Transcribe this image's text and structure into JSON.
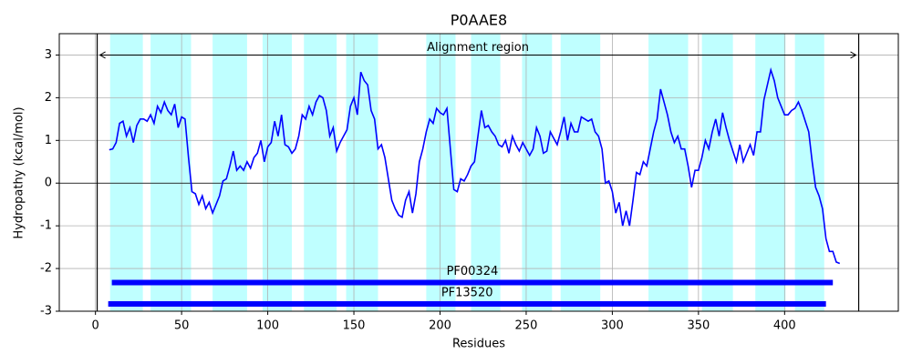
{
  "chart_data": {
    "type": "line",
    "title": "P0AAE8",
    "x_label": "Residues",
    "y_label": "Hydropathy (kcal/mol)",
    "xlim": [
      -21,
      466
    ],
    "ylim": [
      -3,
      3.5
    ],
    "xticks": [
      0,
      50,
      100,
      150,
      200,
      250,
      300,
      350,
      400
    ],
    "yticks": [
      -3,
      -2,
      -1,
      0,
      1,
      2,
      3
    ],
    "grid": true,
    "x": [
      8,
      10,
      12,
      14,
      16,
      18,
      20,
      22,
      24,
      26,
      28,
      30,
      32,
      34,
      36,
      38,
      40,
      42,
      44,
      46,
      48,
      50,
      52,
      54,
      56,
      58,
      60,
      62,
      64,
      66,
      68,
      70,
      72,
      74,
      76,
      78,
      80,
      82,
      84,
      86,
      88,
      90,
      92,
      94,
      96,
      98,
      100,
      102,
      104,
      106,
      108,
      110,
      112,
      114,
      116,
      118,
      120,
      122,
      124,
      126,
      128,
      130,
      132,
      134,
      136,
      138,
      140,
      142,
      144,
      146,
      148,
      150,
      152,
      154,
      156,
      158,
      160,
      162,
      164,
      166,
      168,
      170,
      172,
      174,
      176,
      178,
      180,
      182,
      184,
      186,
      188,
      190,
      192,
      194,
      196,
      198,
      200,
      202,
      204,
      206,
      208,
      210,
      212,
      214,
      216,
      218,
      220,
      222,
      224,
      226,
      228,
      230,
      232,
      234,
      236,
      238,
      240,
      242,
      244,
      246,
      248,
      250,
      252,
      254,
      256,
      258,
      260,
      262,
      264,
      266,
      268,
      270,
      272,
      274,
      276,
      278,
      280,
      282,
      284,
      286,
      288,
      290,
      292,
      294,
      296,
      298,
      300,
      302,
      304,
      306,
      308,
      310,
      312,
      314,
      316,
      318,
      320,
      322,
      324,
      326,
      328,
      330,
      332,
      334,
      336,
      338,
      340,
      342,
      344,
      346,
      348,
      350,
      352,
      354,
      356,
      358,
      360,
      362,
      364,
      366,
      368,
      370,
      372,
      374,
      376,
      378,
      380,
      382,
      384,
      386,
      388,
      390,
      392,
      394,
      396,
      398,
      400,
      402,
      404,
      406,
      408,
      410,
      412,
      414,
      416,
      418,
      420,
      422,
      424,
      426,
      428,
      430,
      432
    ],
    "series": [
      {
        "color": "#0000ff",
        "values": [
          0.78,
          0.8,
          0.95,
          1.4,
          1.45,
          1.1,
          1.3,
          0.95,
          1.35,
          1.5,
          1.5,
          1.45,
          1.6,
          1.4,
          1.8,
          1.65,
          1.9,
          1.7,
          1.6,
          1.85,
          1.3,
          1.55,
          1.5,
          0.6,
          -0.2,
          -0.25,
          -0.5,
          -0.3,
          -0.6,
          -0.45,
          -0.7,
          -0.5,
          -0.3,
          0.05,
          0.1,
          0.4,
          0.75,
          0.3,
          0.4,
          0.3,
          0.5,
          0.35,
          0.6,
          0.7,
          1.0,
          0.5,
          0.85,
          0.95,
          1.45,
          1.1,
          1.6,
          0.9,
          0.85,
          0.7,
          0.8,
          1.1,
          1.6,
          1.5,
          1.8,
          1.6,
          1.9,
          2.05,
          2.0,
          1.7,
          1.1,
          1.3,
          0.75,
          0.95,
          1.1,
          1.25,
          1.8,
          2.0,
          1.6,
          2.6,
          2.4,
          2.3,
          1.7,
          1.5,
          0.8,
          0.9,
          0.6,
          0.1,
          -0.4,
          -0.6,
          -0.75,
          -0.8,
          -0.4,
          -0.2,
          -0.7,
          -0.25,
          0.5,
          0.8,
          1.2,
          1.5,
          1.4,
          1.75,
          1.65,
          1.6,
          1.75,
          0.8,
          -0.15,
          -0.2,
          0.1,
          0.05,
          0.2,
          0.4,
          0.5,
          1.1,
          1.7,
          1.3,
          1.35,
          1.2,
          1.1,
          0.9,
          0.85,
          1.0,
          0.7,
          1.1,
          0.9,
          0.75,
          0.95,
          0.8,
          0.65,
          0.8,
          1.3,
          1.1,
          0.7,
          0.75,
          1.2,
          1.05,
          0.9,
          1.2,
          1.55,
          1.0,
          1.4,
          1.2,
          1.2,
          1.55,
          1.5,
          1.45,
          1.5,
          1.2,
          1.1,
          0.8,
          0.0,
          0.05,
          -0.2,
          -0.7,
          -0.45,
          -1.0,
          -0.65,
          -1.0,
          -0.4,
          0.25,
          0.2,
          0.5,
          0.4,
          0.8,
          1.2,
          1.5,
          2.2,
          1.9,
          1.6,
          1.2,
          0.95,
          1.1,
          0.8,
          0.8,
          0.4,
          -0.1,
          0.3,
          0.3,
          0.6,
          1.0,
          0.8,
          1.2,
          1.5,
          1.1,
          1.65,
          1.3,
          1.0,
          0.75,
          0.5,
          0.9,
          0.5,
          0.7,
          0.9,
          0.65,
          1.2,
          1.2,
          1.95,
          2.3,
          2.65,
          2.4,
          2.0,
          1.8,
          1.6,
          1.6,
          1.7,
          1.75,
          1.9,
          1.7,
          1.45,
          1.2,
          0.5,
          -0.1,
          -0.3,
          -0.6,
          -1.3,
          -1.6,
          -1.6,
          -1.85,
          -1.88
        ]
      }
    ],
    "regions": {
      "color": "#bfffff",
      "spans": [
        [
          8.5,
          27.5
        ],
        [
          32,
          55.5
        ],
        [
          68,
          88
        ],
        [
          97,
          114
        ],
        [
          121,
          140
        ],
        [
          145.5,
          164
        ],
        [
          192,
          209
        ],
        [
          218,
          235
        ],
        [
          247.6,
          265
        ],
        [
          270,
          293
        ],
        [
          321,
          344
        ],
        [
          352,
          370
        ],
        [
          383,
          400.5
        ],
        [
          406,
          423
        ]
      ]
    },
    "hlines": [
      0
    ],
    "alignment": {
      "label": "Alignment region",
      "start": 1,
      "end": 443,
      "y": 3
    },
    "domains": {
      "color": "#0000ff",
      "items": [
        {
          "name": "PF00324",
          "start": 9.5,
          "end": 428,
          "y": -2.33
        },
        {
          "name": "PF13520",
          "start": 7.4,
          "end": 424,
          "y": -2.83
        }
      ]
    }
  }
}
